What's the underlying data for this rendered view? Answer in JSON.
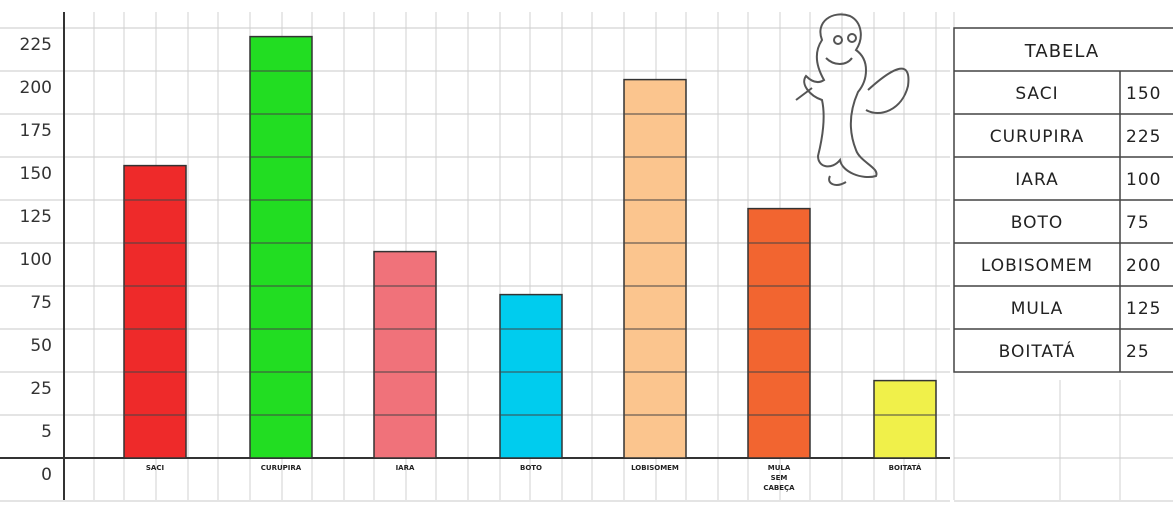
{
  "chart_data": {
    "type": "bar",
    "y_tick_labels": [
      "0",
      "5",
      "25",
      "50",
      "75",
      "100",
      "125",
      "150",
      "175",
      "200",
      "225"
    ],
    "categories": [
      "SACI",
      "CURUPIRA",
      "IARA",
      "BOTO",
      "LOBISOMEM",
      "MULA SEM CABEÇA",
      "BOITATÁ"
    ],
    "values": [
      150,
      225,
      100,
      75,
      200,
      125,
      25
    ],
    "colors": [
      "#ee2a2a",
      "#22dd22",
      "#f0727a",
      "#00ccee",
      "#fbc58e",
      "#f26530",
      "#f0f04a"
    ],
    "grid": true,
    "table": {
      "title": "TABELA",
      "rows": [
        {
          "name": "SACI",
          "value": "150"
        },
        {
          "name": "CURUPIRA",
          "value": "225"
        },
        {
          "name": "IARA",
          "value": "100"
        },
        {
          "name": "BOTO",
          "value": "75"
        },
        {
          "name": "LOBISOMEM",
          "value": "200"
        },
        {
          "name": "MULA",
          "value": "125"
        },
        {
          "name": "BOITATÁ",
          "value": "25"
        }
      ]
    }
  },
  "illustration": {
    "icon": "cartoon-creature-icon"
  }
}
